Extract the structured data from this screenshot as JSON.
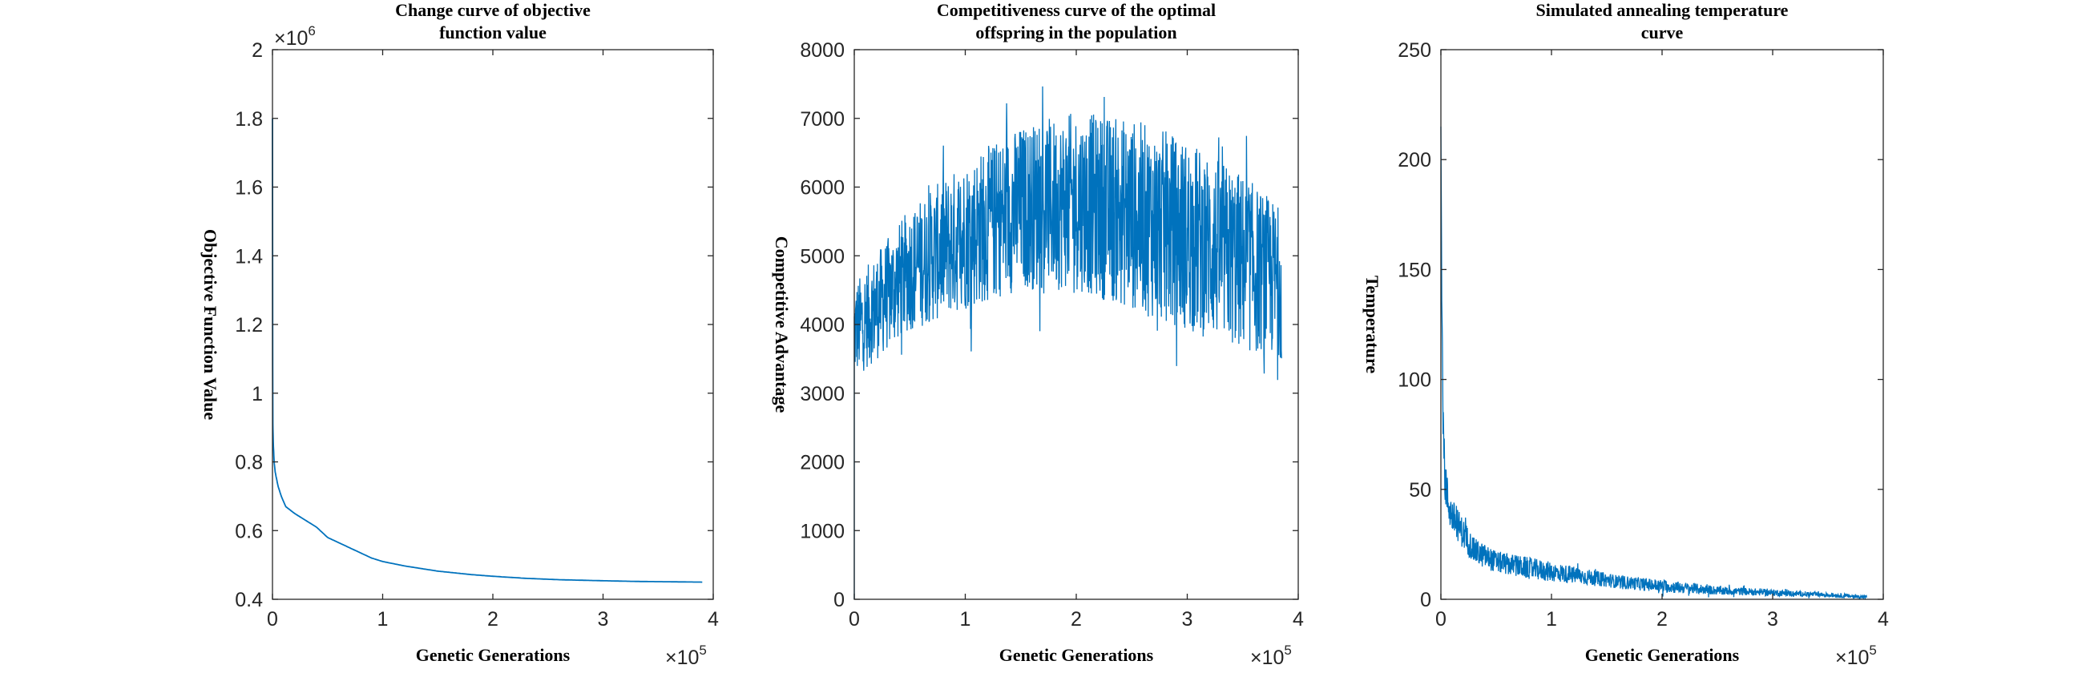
{
  "chart_data": [
    {
      "type": "line",
      "title_lines": [
        "Change curve of objective",
        "function value"
      ],
      "xlabel": "Genetic Generations",
      "ylabel": "Objective Function Value",
      "xlim": [
        0,
        4
      ],
      "ylim": [
        0.4,
        2
      ],
      "x_ticks": [
        "0",
        "1",
        "2",
        "3",
        "4"
      ],
      "y_ticks": [
        "0.4",
        "0.6",
        "0.8",
        "1",
        "1.2",
        "1.4",
        "1.6",
        "1.8",
        "2"
      ],
      "x_multiplier": {
        "base": "×10",
        "exp": "5"
      },
      "y_multiplier": {
        "base": "×10",
        "exp": "6"
      },
      "color": "#0072BD",
      "series": [
        {
          "x": [
            0,
            0.003,
            0.008,
            0.015,
            0.025,
            0.05,
            0.08,
            0.12,
            0.2,
            0.3,
            0.4,
            0.5,
            0.6,
            0.7,
            0.8,
            0.9,
            1.0,
            1.2,
            1.5,
            1.8,
            2.0,
            2.3,
            2.6,
            3.0,
            3.3,
            3.6,
            3.9
          ],
          "y": [
            1.8,
            0.92,
            0.85,
            0.8,
            0.77,
            0.73,
            0.7,
            0.67,
            0.65,
            0.63,
            0.61,
            0.58,
            0.565,
            0.55,
            0.535,
            0.52,
            0.51,
            0.497,
            0.482,
            0.472,
            0.467,
            0.461,
            0.457,
            0.454,
            0.452,
            0.451,
            0.45
          ]
        }
      ]
    },
    {
      "type": "line",
      "title_lines": [
        "Competitiveness curve of the optimal",
        "offspring in the population"
      ],
      "xlabel": "Genetic Generations",
      "ylabel": "Competitive Advantage",
      "xlim": [
        0,
        4
      ],
      "ylim": [
        0,
        8000
      ],
      "x_ticks": [
        "0",
        "1",
        "2",
        "3",
        "4"
      ],
      "y_ticks": [
        "0",
        "1000",
        "2000",
        "3000",
        "4000",
        "5000",
        "6000",
        "7000",
        "8000"
      ],
      "x_multiplier": {
        "base": "×10",
        "exp": "5"
      },
      "color": "#0072BD",
      "series": [
        {
          "x": [
            0,
            0.5,
            1.0,
            1.5,
            2.0,
            2.5,
            3.0,
            3.5,
            3.85
          ],
          "y_mean": [
            3900,
            4800,
            5300,
            5700,
            5800,
            5600,
            5300,
            4900,
            4600
          ],
          "y_band": [
            700,
            900,
            1100,
            1200,
            1300,
            1400,
            1400,
            1300,
            1100
          ],
          "y_start": 0
        }
      ]
    },
    {
      "type": "line",
      "title_lines": [
        "Simulated annealing temperature",
        "curve"
      ],
      "xlabel": "Genetic Generations",
      "ylabel": "Temperature",
      "xlim": [
        0,
        4
      ],
      "ylim": [
        0,
        250
      ],
      "x_ticks": [
        "0",
        "1",
        "2",
        "3",
        "4"
      ],
      "y_ticks": [
        "0",
        "50",
        "100",
        "150",
        "200",
        "250"
      ],
      "x_multiplier": {
        "base": "×10",
        "exp": "5"
      },
      "color": "#0072BD",
      "series": [
        {
          "x": [
            0,
            0.01,
            0.03,
            0.06,
            0.1,
            0.2,
            0.3,
            0.5,
            0.8,
            1.2,
            1.6,
            2.0,
            2.5,
            3.0,
            3.5,
            3.85
          ],
          "y_mean": [
            215,
            120,
            60,
            45,
            38,
            30,
            22,
            17,
            14,
            11,
            8,
            6,
            4,
            3,
            2,
            1
          ],
          "y_band": [
            0,
            20,
            14,
            10,
            8,
            7,
            6,
            5,
            5,
            4,
            3,
            3,
            2,
            1.5,
            1,
            0.8
          ]
        }
      ]
    }
  ]
}
